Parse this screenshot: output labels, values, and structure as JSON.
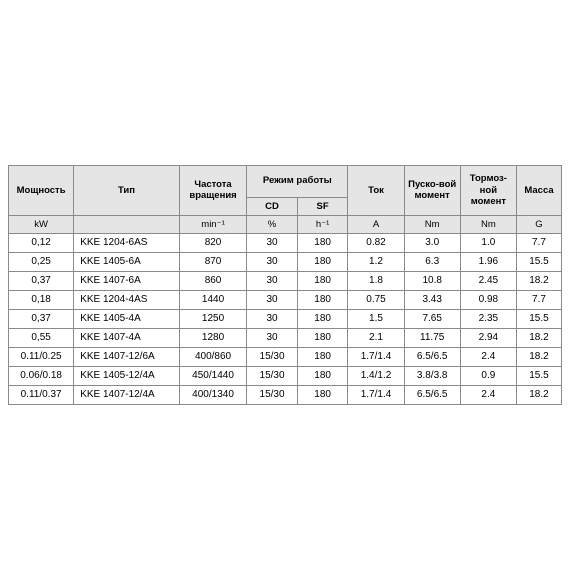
{
  "table": {
    "type": "table",
    "header_bg": "#e5e5e5",
    "border_color": "#8a8a8a",
    "text_color": "#000000",
    "row1": [
      "Мощность",
      "Тип",
      "Частота вращения",
      "Режим работы",
      "Ток",
      "Пуско-вой момент",
      "Тормоз-ной момент",
      "Масса"
    ],
    "row2": [
      "CD",
      "SF"
    ],
    "row3_units": [
      "kW",
      "",
      "min⁻¹",
      "%",
      "h⁻¹",
      "A",
      "Nm",
      "Nm",
      "G"
    ],
    "rows": [
      [
        "0,12",
        "KKE 1204-6AS",
        "820",
        "30",
        "180",
        "0.82",
        "3.0",
        "1.0",
        "7.7"
      ],
      [
        "0,25",
        "KKE 1405-6A",
        "870",
        "30",
        "180",
        "1.2",
        "6.3",
        "1.96",
        "15.5"
      ],
      [
        "0,37",
        "KKE 1407-6A",
        "860",
        "30",
        "180",
        "1.8",
        "10.8",
        "2.45",
        "18.2"
      ],
      [
        "0,18",
        "KKE 1204-4AS",
        "1440",
        "30",
        "180",
        "0.75",
        "3.43",
        "0.98",
        "7.7"
      ],
      [
        "0,37",
        "KKE 1405-4A",
        "1250",
        "30",
        "180",
        "1.5",
        "7.65",
        "2.35",
        "15.5"
      ],
      [
        "0,55",
        "KKE 1407-4A",
        "1280",
        "30",
        "180",
        "2.1",
        "11.75",
        "2.94",
        "18.2"
      ],
      [
        "0.11/0.25",
        "KKE 1407-12/6A",
        "400/860",
        "15/30",
        "180",
        "1.7/1.4",
        "6.5/6.5",
        "2.4",
        "18.2"
      ],
      [
        "0.06/0.18",
        "KKE 1405-12/4A",
        "450/1440",
        "15/30",
        "180",
        "1.4/1.2",
        "3.8/3.8",
        "0.9",
        "15.5"
      ],
      [
        "0.11/0.37",
        "KKE 1407-12/4A",
        "400/1340",
        "15/30",
        "180",
        "1.7/1.4",
        "6.5/6.5",
        "2.4",
        "18.2"
      ]
    ]
  }
}
